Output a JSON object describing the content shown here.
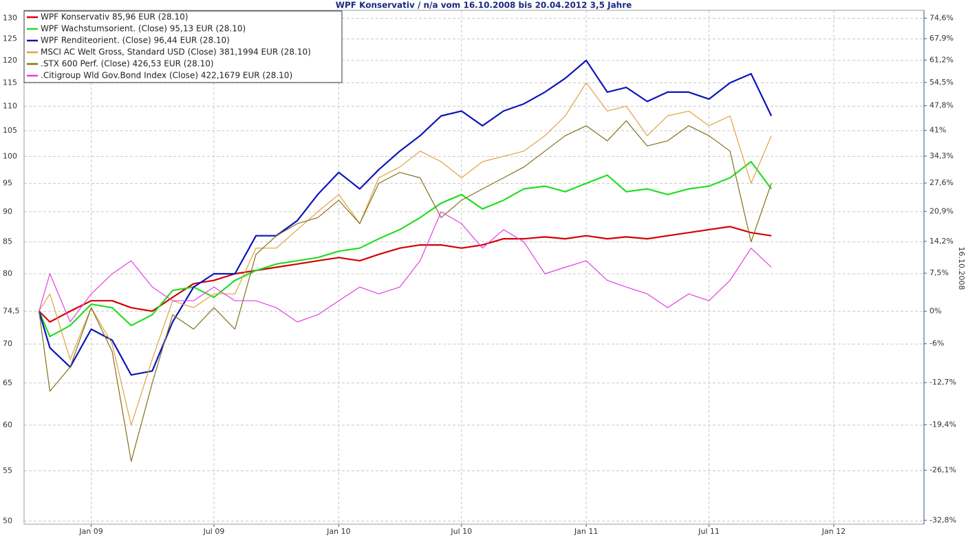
{
  "chart_data": {
    "type": "line",
    "title": "WPF Konservativ / n/a vom 16.10.2008 bis 20.04.2012 3,5 Jahre",
    "y2_axis_label": "16.10.2008",
    "x": [
      "2008-10-16",
      "2008-11-01",
      "2008-12-01",
      "2009-01-01",
      "2009-02-01",
      "2009-03-01",
      "2009-04-01",
      "2009-05-01",
      "2009-06-01",
      "2009-07-01",
      "2009-08-01",
      "2009-09-01",
      "2009-10-01",
      "2009-11-01",
      "2009-12-01",
      "2010-01-01",
      "2010-02-01",
      "2010-03-01",
      "2010-04-01",
      "2010-05-01",
      "2010-06-01",
      "2010-07-01",
      "2010-08-01",
      "2010-09-01",
      "2010-10-01",
      "2010-11-01",
      "2010-12-01",
      "2011-01-01",
      "2011-02-01",
      "2011-03-01",
      "2011-04-01",
      "2011-05-01",
      "2011-06-01",
      "2011-07-01",
      "2011-08-01",
      "2011-09-01",
      "2011-10-01"
    ],
    "series": [
      {
        "name": "WPF Konservativ 85,96 EUR (28.10)",
        "color": "#d40000",
        "width": 2.2,
        "values": [
          74.5,
          73,
          74.5,
          76,
          76,
          75,
          74.5,
          76.5,
          78.5,
          79,
          80,
          80.5,
          81,
          81.5,
          82,
          82.5,
          82,
          83,
          84,
          84.5,
          84.5,
          84,
          84.5,
          85.5,
          85.5,
          85.8,
          85.5,
          86,
          85.5,
          85.8,
          85.5,
          86,
          86.5,
          87,
          87.5,
          86.5,
          86
        ]
      },
      {
        "name": "WPF Wachstumsorient. (Close) 95,13 EUR (28.10)",
        "color": "#22dd22",
        "width": 2.2,
        "values": [
          74.5,
          71,
          72.5,
          75.5,
          75,
          72.5,
          74,
          77.5,
          78,
          76.5,
          79,
          80.5,
          81.5,
          82,
          82.5,
          83.5,
          84,
          85.5,
          87,
          89,
          91.5,
          93,
          90.5,
          92,
          94,
          94.5,
          93.5,
          95,
          96.5,
          93.5,
          94,
          93,
          94,
          94.5,
          96,
          99,
          94
        ]
      },
      {
        "name": "WPF Renditeorient. (Close) 96,44 EUR (28.10)",
        "color": "#0a14b8",
        "width": 2.2,
        "values": [
          74.5,
          69.5,
          67,
          72,
          70.5,
          66,
          66.5,
          73,
          78,
          80,
          80,
          86,
          86,
          88.5,
          93,
          97,
          94,
          97.5,
          101,
          104,
          108,
          109,
          106,
          109,
          110.5,
          113,
          116,
          120,
          113,
          114,
          111,
          113,
          113,
          111.5,
          115,
          117,
          108
        ]
      },
      {
        "name": "MSCI AC Welt Gross, Standard USD (Close) 381,1994 EUR (28.10)",
        "color": "#e0a040",
        "width": 1.2,
        "values": [
          74.5,
          77,
          68,
          75,
          70,
          60,
          68,
          76,
          75,
          77,
          77,
          84,
          84,
          87,
          90,
          93,
          88,
          96,
          98,
          101,
          99,
          96,
          99,
          100,
          101,
          104,
          108,
          115,
          109,
          110,
          104,
          108,
          109,
          106,
          108,
          95,
          104
        ]
      },
      {
        "name": ".STX 600 Perf. (Close) 426,53 EUR (28.10)",
        "color": "#807018",
        "width": 1.2,
        "values": [
          74.5,
          64,
          67,
          75,
          69,
          56,
          65,
          74,
          72,
          75,
          72,
          83,
          86,
          88,
          89,
          92,
          88,
          95,
          97,
          96,
          89,
          92,
          94,
          96,
          98,
          101,
          104,
          106,
          103,
          107,
          102,
          103,
          106,
          104,
          101,
          85,
          95
        ]
      },
      {
        "name": ".Citigroup Wld Gov.Bond Index (Close) 422,1679 EUR (28.10)",
        "color": "#e040e0",
        "width": 1.2,
        "values": [
          74.5,
          80,
          73,
          77,
          80,
          82,
          78,
          76,
          76,
          78,
          76,
          76,
          75,
          73,
          74,
          76,
          78,
          77,
          78,
          82,
          90,
          88,
          84,
          87,
          85,
          80,
          81,
          82,
          79,
          78,
          77,
          75,
          77,
          76,
          79,
          84,
          81
        ]
      }
    ],
    "xlim": [
      "2008-09-24",
      "2012-05-13"
    ],
    "xticks": [
      {
        "value": "2009-01-01",
        "label": "Jan 09"
      },
      {
        "value": "2009-07-01",
        "label": "Jul 09"
      },
      {
        "value": "2010-01-01",
        "label": "Jan 10"
      },
      {
        "value": "2010-07-01",
        "label": "Jul 10"
      },
      {
        "value": "2011-01-01",
        "label": "Jan 11"
      },
      {
        "value": "2011-07-01",
        "label": "Jul 11"
      },
      {
        "value": "2012-01-01",
        "label": "Jan 12"
      }
    ],
    "ylim": [
      49.7,
      132
    ],
    "yscale": "log",
    "yticks": [
      50,
      55,
      60,
      65,
      70,
      {
        "value": 74.5,
        "label": "74,5"
      },
      80,
      85,
      90,
      95,
      100,
      105,
      110,
      115,
      120,
      125,
      130
    ],
    "y2lim": [
      -33.3,
      77.2
    ],
    "y2scale": "log",
    "y2ticks": [
      {
        "value": -32.8,
        "label": "-32,8%"
      },
      {
        "value": -26.1,
        "label": "-26,1%"
      },
      {
        "value": -19.4,
        "label": "-19,4%"
      },
      {
        "value": -12.7,
        "label": "-12,7%"
      },
      {
        "value": -6,
        "label": "-6%"
      },
      {
        "value": 0,
        "label": "0%"
      },
      {
        "value": 7.5,
        "label": "7,5%"
      },
      {
        "value": 14.2,
        "label": "14,2%"
      },
      {
        "value": 20.9,
        "label": "20,9%"
      },
      {
        "value": 27.6,
        "label": "27,6%"
      },
      {
        "value": 34.3,
        "label": "34,3%"
      },
      {
        "value": 41,
        "label": "41%"
      },
      {
        "value": 47.8,
        "label": "47,8%"
      },
      {
        "value": 54.5,
        "label": "54,5%"
      },
      {
        "value": 61.2,
        "label": "61,2%"
      },
      {
        "value": 67.9,
        "label": "67,9%"
      },
      {
        "value": 74.6,
        "label": "74,6%"
      }
    ],
    "grid": true,
    "legend": "top-left"
  }
}
